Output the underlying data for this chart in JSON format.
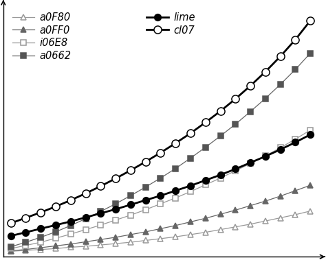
{
  "series": [
    {
      "label": "a0F80",
      "color": "#999999",
      "linewidth": 0.9,
      "marker": "^",
      "markerfacecolor": "white",
      "markeredgecolor": "#999999",
      "markersize": 6,
      "zorder": 2,
      "y_values": [
        0.01,
        0.02,
        0.03,
        0.04,
        0.055,
        0.065,
        0.08,
        0.095,
        0.11,
        0.13,
        0.15,
        0.17,
        0.195,
        0.22,
        0.25,
        0.28,
        0.31,
        0.345,
        0.38,
        0.415,
        0.455
      ]
    },
    {
      "label": "a0FF0",
      "color": "#666666",
      "linewidth": 0.9,
      "marker": "^",
      "markerfacecolor": "#666666",
      "markeredgecolor": "#666666",
      "markersize": 6,
      "zorder": 2,
      "y_values": [
        0.015,
        0.03,
        0.05,
        0.07,
        0.09,
        0.115,
        0.14,
        0.165,
        0.195,
        0.225,
        0.26,
        0.295,
        0.335,
        0.375,
        0.42,
        0.465,
        0.515,
        0.565,
        0.62,
        0.68,
        0.74
      ]
    },
    {
      "label": "i06E8",
      "color": "#999999",
      "linewidth": 0.9,
      "marker": "s",
      "markerfacecolor": "white",
      "markeredgecolor": "#999999",
      "markersize": 6,
      "zorder": 3,
      "y_values": [
        0.04,
        0.075,
        0.11,
        0.155,
        0.2,
        0.25,
        0.3,
        0.355,
        0.41,
        0.47,
        0.535,
        0.6,
        0.67,
        0.745,
        0.82,
        0.9,
        0.98,
        1.065,
        1.155,
        1.25,
        1.35
      ]
    },
    {
      "label": "a0662",
      "color": "#666666",
      "linewidth": 0.9,
      "marker": "s",
      "markerfacecolor": "#555555",
      "markeredgecolor": "#555555",
      "markersize": 6,
      "zorder": 3,
      "y_values": [
        0.06,
        0.11,
        0.165,
        0.225,
        0.295,
        0.37,
        0.45,
        0.535,
        0.625,
        0.72,
        0.82,
        0.925,
        1.04,
        1.16,
        1.285,
        1.415,
        1.555,
        1.7,
        1.855,
        2.02,
        2.2
      ]
    },
    {
      "label": "lime",
      "color": "#000000",
      "linewidth": 2.0,
      "marker": "o",
      "markerfacecolor": "#000000",
      "markeredgecolor": "#000000",
      "markersize": 7,
      "zorder": 4,
      "y_values": [
        0.18,
        0.22,
        0.26,
        0.3,
        0.34,
        0.385,
        0.43,
        0.475,
        0.525,
        0.575,
        0.625,
        0.68,
        0.735,
        0.795,
        0.855,
        0.92,
        0.99,
        1.06,
        1.135,
        1.215,
        1.3
      ]
    },
    {
      "label": "cl07",
      "color": "#000000",
      "linewidth": 2.0,
      "marker": "o",
      "markerfacecolor": "white",
      "markeredgecolor": "#000000",
      "markersize": 8,
      "zorder": 5,
      "y_values": [
        0.32,
        0.38,
        0.44,
        0.505,
        0.575,
        0.65,
        0.73,
        0.815,
        0.905,
        1.0,
        1.1,
        1.205,
        1.315,
        1.435,
        1.56,
        1.695,
        1.84,
        1.995,
        2.165,
        2.35,
        2.56
      ]
    }
  ],
  "n_points": 21,
  "grid_color": "#bbbbbb",
  "background_color": "#ffffff",
  "legend_fontsize": 10.5,
  "left_legend_items": [
    "a0F80",
    "a0FF0",
    "i06E8",
    "a0662"
  ],
  "right_legend_items": [
    "lime",
    "cl07"
  ]
}
